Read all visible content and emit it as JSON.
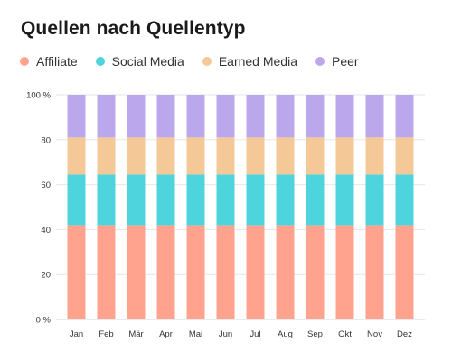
{
  "chart_data": {
    "type": "bar",
    "stacked": true,
    "title": "Quellen nach Quellentyp",
    "categories": [
      "Jan",
      "Feb",
      "Mär",
      "Apr",
      "Mai",
      "Jun",
      "Jul",
      "Aug",
      "Sep",
      "Okt",
      "Nov",
      "Dez"
    ],
    "series": [
      {
        "name": "Affiliate",
        "color": "#FFA38F",
        "values": [
          42,
          42,
          42,
          42,
          42,
          42,
          42,
          42,
          42,
          42,
          42,
          42
        ]
      },
      {
        "name": "Social Media",
        "color": "#4DD4DC",
        "values": [
          22.5,
          22.5,
          22.5,
          22.5,
          22.5,
          22.5,
          22.5,
          22.5,
          22.5,
          22.5,
          22.5,
          22.5
        ]
      },
      {
        "name": "Earned Media",
        "color": "#F5C897",
        "values": [
          16.5,
          16.5,
          16.5,
          16.5,
          16.5,
          16.5,
          16.5,
          16.5,
          16.5,
          16.5,
          16.5,
          16.5
        ]
      },
      {
        "name": "Peer",
        "color": "#BBA8EC",
        "values": [
          19,
          19,
          19,
          19,
          19,
          19,
          19,
          19,
          19,
          19,
          19,
          19
        ]
      }
    ],
    "y_ticks": [
      "0 %",
      "20",
      "40",
      "60",
      "80",
      "100 %"
    ],
    "ylim": [
      0,
      100
    ],
    "grid": true,
    "legend_position": "top-left"
  }
}
